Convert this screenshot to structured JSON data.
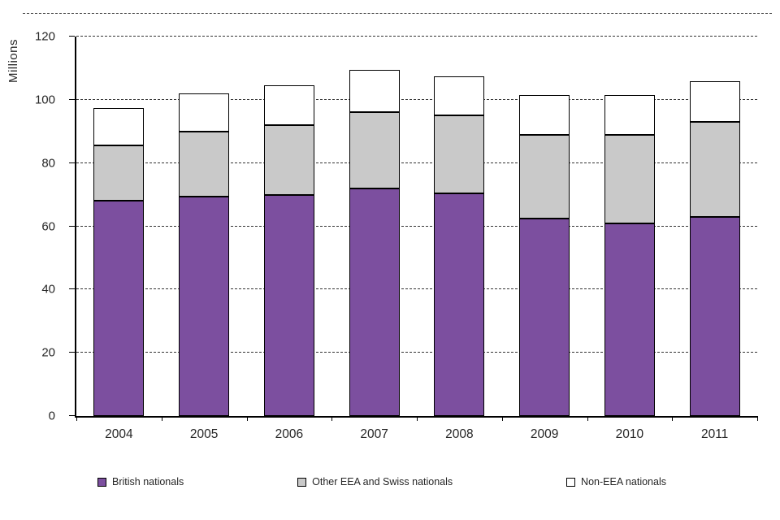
{
  "chart_data": {
    "type": "bar",
    "stacked": true,
    "title": "",
    "xlabel": "",
    "ylabel": "Millions",
    "ylim": [
      0,
      120
    ],
    "yticks": [
      0,
      20,
      40,
      60,
      80,
      100,
      120
    ],
    "grid": "horizontal-dashed",
    "legend_position": "bottom",
    "categories": [
      "2004",
      "2005",
      "2006",
      "2007",
      "2008",
      "2009",
      "2010",
      "2011"
    ],
    "series": [
      {
        "name": "British nationals",
        "color": "#7c4f9f",
        "values": [
          68,
          69.5,
          70,
          72,
          70.5,
          62.5,
          61,
          63
        ]
      },
      {
        "name": "Other EEA and Swiss nationals",
        "color": "#c9c9c9",
        "values": [
          17.5,
          20.5,
          22,
          24,
          24.5,
          26.5,
          28,
          30
        ]
      },
      {
        "name": "Non-EEA nationals",
        "color": "#ffffff",
        "values": [
          12,
          12,
          12.5,
          13.5,
          12.5,
          12.5,
          12.5,
          13
        ]
      }
    ],
    "totals": [
      97.5,
      102,
      104.5,
      109.5,
      107.5,
      101.5,
      101.5,
      106
    ]
  }
}
